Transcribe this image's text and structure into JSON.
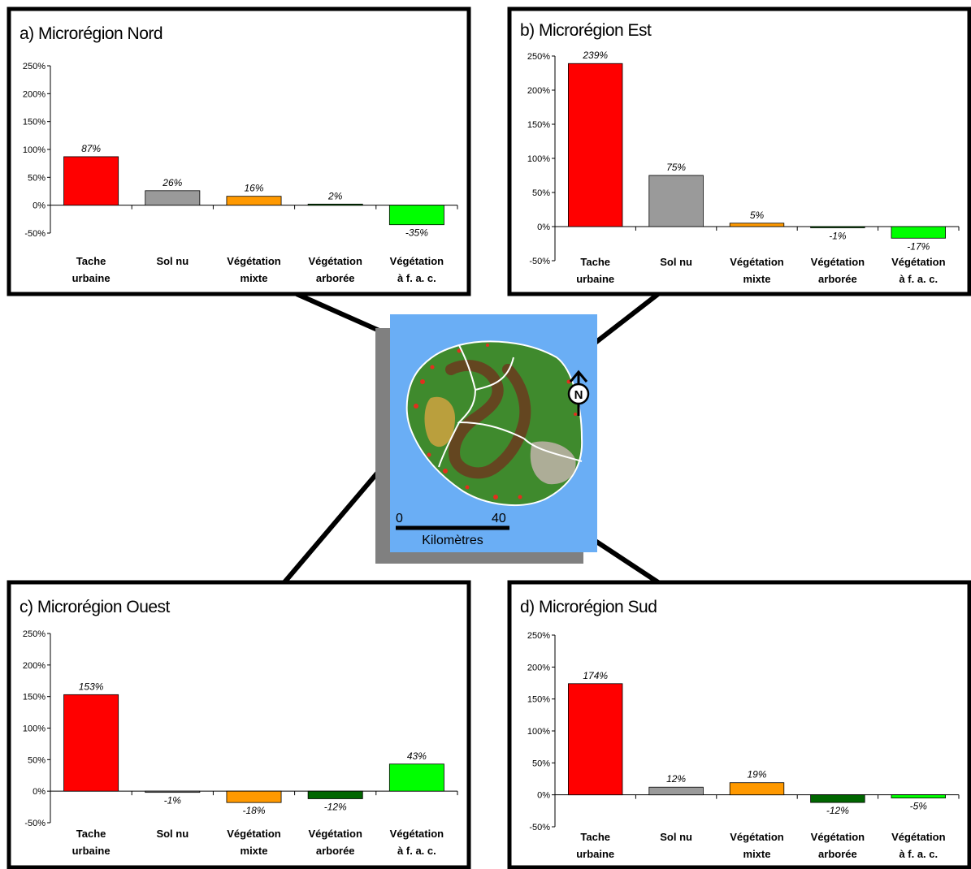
{
  "figure": {
    "scale_bar": {
      "start": "0",
      "end": "40",
      "unit": "Kilomètres"
    },
    "north_label": "N"
  },
  "chart_data": [
    {
      "type": "bar",
      "title": "a) Microrégion Nord",
      "categories": [
        [
          "Tache",
          "urbaine"
        ],
        [
          "Sol nu"
        ],
        [
          "Végétation",
          "mixte"
        ],
        [
          "Végétation",
          "arborée"
        ],
        [
          "Végétation",
          "à f. a. c."
        ]
      ],
      "values": [
        87,
        26,
        16,
        2,
        -35
      ],
      "value_labels": [
        "87%",
        "26%",
        "16%",
        "2%",
        "-35%"
      ],
      "ylim": [
        -50,
        250
      ],
      "yticks": [
        "-50%",
        "0%",
        "50%",
        "100%",
        "150%",
        "200%",
        "250%"
      ],
      "colors": [
        "#ff0000",
        "#9a9a9a",
        "#ff9900",
        "#006600",
        "#00ff00"
      ],
      "grid": false,
      "legend": "none"
    },
    {
      "type": "bar",
      "title": "b) Microrégion Est",
      "categories": [
        [
          "Tache",
          "urbaine"
        ],
        [
          "Sol nu"
        ],
        [
          "Végétation",
          "mixte"
        ],
        [
          "Végétation",
          "arborée"
        ],
        [
          "Végétation",
          "à f. a. c."
        ]
      ],
      "values": [
        239,
        75,
        5,
        -1,
        -17
      ],
      "value_labels": [
        "239%",
        "75%",
        "5%",
        "-1%",
        "-17%"
      ],
      "ylim": [
        -50,
        250
      ],
      "yticks": [
        "-50%",
        "0%",
        "50%",
        "100%",
        "150%",
        "200%",
        "250%"
      ],
      "colors": [
        "#ff0000",
        "#9a9a9a",
        "#ff9900",
        "#006600",
        "#00ff00"
      ],
      "grid": false,
      "legend": "none"
    },
    {
      "type": "bar",
      "title": "c) Microrégion Ouest",
      "categories": [
        [
          "Tache",
          "urbaine"
        ],
        [
          "Sol nu"
        ],
        [
          "Végétation",
          "mixte"
        ],
        [
          "Végétation",
          "arborée"
        ],
        [
          "Végétation",
          "à f. a. c."
        ]
      ],
      "values": [
        153,
        -1,
        -18,
        -12,
        43
      ],
      "value_labels": [
        "153%",
        "-1%",
        "-18%",
        "-12%",
        "43%"
      ],
      "ylim": [
        -50,
        250
      ],
      "yticks": [
        "-50%",
        "0%",
        "50%",
        "100%",
        "150%",
        "200%",
        "250%"
      ],
      "colors": [
        "#ff0000",
        "#9a9a9a",
        "#ff9900",
        "#006600",
        "#00ff00"
      ],
      "grid": false,
      "legend": "none"
    },
    {
      "type": "bar",
      "title": "d) Microrégion Sud",
      "categories": [
        [
          "Tache",
          "urbaine"
        ],
        [
          "Sol nu"
        ],
        [
          "Végétation",
          "mixte"
        ],
        [
          "Végétation",
          "arborée"
        ],
        [
          "Végétation",
          "à f. a. c."
        ]
      ],
      "values": [
        174,
        12,
        19,
        -12,
        -5
      ],
      "value_labels": [
        "174%",
        "12%",
        "19%",
        "-12%",
        "-5%"
      ],
      "ylim": [
        -50,
        250
      ],
      "yticks": [
        "-50%",
        "0%",
        "50%",
        "100%",
        "150%",
        "200%",
        "250%"
      ],
      "colors": [
        "#ff0000",
        "#9a9a9a",
        "#ff9900",
        "#006600",
        "#00ff00"
      ],
      "grid": false,
      "legend": "none"
    }
  ]
}
